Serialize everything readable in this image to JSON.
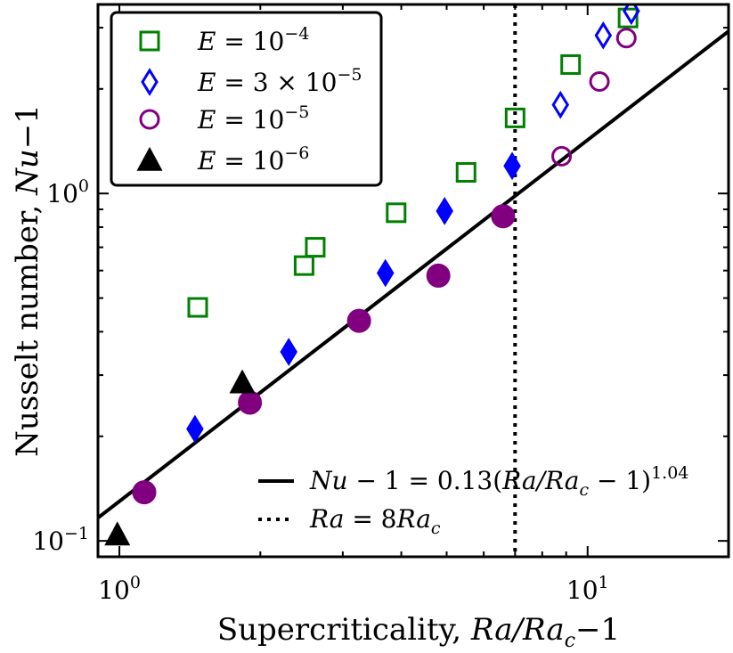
{
  "chart_data": {
    "type": "scatter",
    "xscale": "log",
    "yscale": "log",
    "xlim": [
      0.9,
      20
    ],
    "ylim": [
      0.09,
      3.5
    ],
    "xlabel": {
      "prefix": "Supercriticality, ",
      "italic": "Ra/Ra",
      "sub": "c",
      "suffix": "−1"
    },
    "ylabel": {
      "prefix": "Nusselt number, ",
      "italic": "Nu",
      "suffix": "−1"
    },
    "xticks": [
      {
        "value": 1,
        "base": "10",
        "exp": "0"
      },
      {
        "value": 10,
        "base": "10",
        "exp": "1"
      }
    ],
    "yticks": [
      {
        "value": 0.1,
        "base": "10",
        "exp": "−1"
      },
      {
        "value": 1,
        "base": "10",
        "exp": "0"
      }
    ],
    "grid": false,
    "legend_placement": "top-left",
    "series": [
      {
        "name": "E = 10^-4",
        "legend": {
          "lhs": "E",
          "eq": " = ",
          "mant": "",
          "base": "10",
          "exp": "−4"
        },
        "marker": "square",
        "color": "#008000",
        "points": [
          {
            "x": 1.47,
            "y": 0.47,
            "filled": false
          },
          {
            "x": 2.48,
            "y": 0.62,
            "filled": false
          },
          {
            "x": 2.62,
            "y": 0.7,
            "filled": false
          },
          {
            "x": 3.9,
            "y": 0.88,
            "filled": false
          },
          {
            "x": 5.5,
            "y": 1.15,
            "filled": false
          },
          {
            "x": 7.0,
            "y": 1.65,
            "filled": false
          },
          {
            "x": 9.2,
            "y": 2.35,
            "filled": false
          },
          {
            "x": 12.2,
            "y": 3.2,
            "filled": false
          }
        ]
      },
      {
        "name": "E = 3×10^-5",
        "legend": {
          "lhs": "E",
          "eq": " = ",
          "mant": "3 × ",
          "base": "10",
          "exp": "−5"
        },
        "marker": "diamond",
        "color": "#0000ff",
        "points": [
          {
            "x": 1.45,
            "y": 0.21,
            "filled": true
          },
          {
            "x": 2.3,
            "y": 0.35,
            "filled": true
          },
          {
            "x": 3.7,
            "y": 0.59,
            "filled": true
          },
          {
            "x": 4.95,
            "y": 0.89,
            "filled": true
          },
          {
            "x": 6.9,
            "y": 1.2,
            "filled": true
          },
          {
            "x": 8.75,
            "y": 1.8,
            "filled": false
          },
          {
            "x": 10.8,
            "y": 2.85,
            "filled": false
          },
          {
            "x": 12.4,
            "y": 3.35,
            "filled": false
          }
        ]
      },
      {
        "name": "E = 10^-5",
        "legend": {
          "lhs": "E",
          "eq": " = ",
          "mant": "",
          "base": "10",
          "exp": "−5"
        },
        "marker": "circle",
        "color": "#800080",
        "points": [
          {
            "x": 1.13,
            "y": 0.138,
            "filled": true
          },
          {
            "x": 1.9,
            "y": 0.25,
            "filled": true
          },
          {
            "x": 3.25,
            "y": 0.43,
            "filled": true
          },
          {
            "x": 4.8,
            "y": 0.58,
            "filled": true
          },
          {
            "x": 6.6,
            "y": 0.86,
            "filled": true
          },
          {
            "x": 8.8,
            "y": 1.28,
            "filled": false
          },
          {
            "x": 10.6,
            "y": 2.1,
            "filled": false
          },
          {
            "x": 12.1,
            "y": 2.8,
            "filled": false
          }
        ]
      },
      {
        "name": "E = 10^-6",
        "legend": {
          "lhs": "E",
          "eq": " = ",
          "mant": "",
          "base": "10",
          "exp": "−6"
        },
        "marker": "triangle",
        "color": "#000000",
        "points": [
          {
            "x": 0.99,
            "y": 0.104,
            "filled": true
          },
          {
            "x": 1.83,
            "y": 0.285,
            "filled": true
          }
        ]
      }
    ],
    "fit_line": {
      "coef": 0.13,
      "exponent": 1.04,
      "label": {
        "lhs": "Nu − 1 = 0.13(",
        "ra": "Ra/Ra",
        "sub": "c",
        "mid": " − 1)",
        "exp": "1.04"
      }
    },
    "vline": {
      "x": 7,
      "label": {
        "lhs": "Ra",
        "eq": " = 8",
        "rhs": "Ra",
        "sub": "c"
      }
    }
  }
}
